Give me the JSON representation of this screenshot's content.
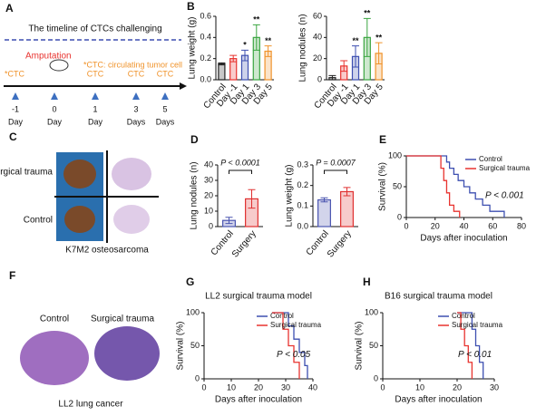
{
  "panels": {
    "letters": [
      "A",
      "B",
      "C",
      "D",
      "E",
      "F",
      "G",
      "H"
    ],
    "timeline": {
      "title": "The timeline of CTCs challenging",
      "amputation": "Amputation",
      "note": "*CTC: circulating tumor cell",
      "first": "*CTC",
      "ctc": [
        "CTC",
        "CTC",
        "CTC"
      ],
      "days": [
        "-1",
        "0",
        "1",
        "3",
        "5"
      ],
      "units": [
        "Day",
        "Day",
        "Day",
        "Days",
        "Days"
      ]
    },
    "c": {
      "rows": [
        "Surgical trauma",
        "Control"
      ],
      "caption": "K7M2 osteosarcoma"
    },
    "f": {
      "cols": [
        "Control",
        "Surgical trauma"
      ],
      "caption": "LL2 lung cancer"
    }
  },
  "chart_data": [
    {
      "type": "bar",
      "ylabel": "Lung weight (g)",
      "categories": [
        "Control",
        "Day -1",
        "Day 1",
        "Day 3",
        "Day 5"
      ],
      "values": [
        0.15,
        0.2,
        0.23,
        0.4,
        0.27
      ],
      "errors": [
        0.01,
        0.03,
        0.05,
        0.12,
        0.05
      ],
      "colors": [
        "#222222",
        "#e8332f",
        "#3d4fb0",
        "#3aa540",
        "#f0932b"
      ],
      "ylim": [
        0,
        0.6
      ],
      "yticks": [
        {
          "value": 0,
          "label": "0.0"
        },
        {
          "value": 0.2,
          "label": "0.2"
        },
        {
          "value": 0.4,
          "label": "0.4"
        },
        {
          "value": 0.6,
          "label": "0.6"
        }
      ],
      "annotations": [
        {
          "index": 2,
          "text": "*"
        },
        {
          "index": 3,
          "text": "**"
        },
        {
          "index": 4,
          "text": "**"
        }
      ]
    },
    {
      "type": "bar",
      "ylabel": "Lung nodules (n)",
      "categories": [
        "Control",
        "Day -1",
        "Day 1",
        "Day 3",
        "Day 5"
      ],
      "values": [
        2,
        13,
        22,
        40,
        25
      ],
      "errors": [
        2,
        5,
        10,
        18,
        10
      ],
      "colors": [
        "#222222",
        "#e8332f",
        "#3d4fb0",
        "#3aa540",
        "#f0932b"
      ],
      "ylim": [
        0,
        60
      ],
      "yticks": [
        0,
        20,
        40,
        60
      ],
      "annotations": [
        {
          "index": 2,
          "text": "**"
        },
        {
          "index": 3,
          "text": "**"
        },
        {
          "index": 4,
          "text": "**"
        }
      ]
    },
    {
      "type": "bar",
      "ylabel": "Lung nodules (n)",
      "categories": [
        "Control",
        "Surgery"
      ],
      "values": [
        4,
        18
      ],
      "errors": [
        2,
        6
      ],
      "colors": [
        "#4a55b0",
        "#e03030"
      ],
      "ylim": [
        0,
        40
      ],
      "yticks": [
        0,
        10,
        20,
        30,
        40
      ],
      "pvalue": "P < 0.0001"
    },
    {
      "type": "bar",
      "ylabel": "Lung weight (g)",
      "categories": [
        "Control",
        "Surgery"
      ],
      "values": [
        0.13,
        0.17
      ],
      "errors": [
        0.01,
        0.02
      ],
      "colors": [
        "#4a55b0",
        "#e03030"
      ],
      "ylim": [
        0,
        0.3
      ],
      "yticks": [
        {
          "value": 0,
          "label": "0.0"
        },
        {
          "value": 0.1,
          "label": "0.1"
        },
        {
          "value": 0.2,
          "label": "0.2"
        },
        {
          "value": 0.3,
          "label": "0.3"
        }
      ],
      "pvalue": "P = 0.0007"
    },
    {
      "type": "line",
      "xlabel": "Days after inoculation",
      "ylabel": "Survival (%)",
      "xlim": [
        0,
        80
      ],
      "xticks": [
        0,
        20,
        40,
        60,
        80
      ],
      "ylim": [
        0,
        100
      ],
      "yticks": [
        0,
        50,
        100
      ],
      "legend": "upper right",
      "pvalue": "P < 0.001",
      "series": [
        {
          "name": "Control",
          "color": "#3d4fb0",
          "x": [
            0,
            28,
            28,
            30,
            30,
            33,
            33,
            36,
            36,
            40,
            40,
            44,
            44,
            48,
            48,
            53,
            53,
            58,
            58,
            68,
            68
          ],
          "values": [
            100,
            100,
            90,
            90,
            80,
            80,
            70,
            70,
            60,
            60,
            50,
            50,
            40,
            40,
            30,
            30,
            20,
            20,
            10,
            10,
            0
          ]
        },
        {
          "name": "Surgical trauma",
          "color": "#e8332f",
          "x": [
            0,
            24,
            24,
            26,
            26,
            28,
            28,
            30,
            30,
            33,
            33,
            37,
            37
          ],
          "values": [
            100,
            100,
            80,
            80,
            60,
            60,
            40,
            40,
            20,
            20,
            10,
            10,
            0
          ]
        }
      ]
    },
    {
      "type": "line",
      "title": "LL2 surgical trauma model",
      "xlabel": "Days after inoculation",
      "ylabel": "Survival (%)",
      "xlim": [
        0,
        40
      ],
      "xticks": [
        0,
        10,
        20,
        30,
        40
      ],
      "ylim": [
        0,
        100
      ],
      "yticks": [
        0,
        50,
        100
      ],
      "legend": "upper right",
      "pvalue": "P < 0.05",
      "series": [
        {
          "name": "Control",
          "color": "#3d4fb0",
          "x": [
            25,
            31,
            31,
            33,
            33,
            35,
            35,
            37,
            37,
            38,
            38
          ],
          "values": [
            100,
            100,
            80,
            80,
            60,
            60,
            40,
            40,
            20,
            20,
            0
          ]
        },
        {
          "name": "Surgical trauma",
          "color": "#e8332f",
          "x": [
            25,
            29,
            29,
            31,
            31,
            33,
            33,
            35,
            35
          ],
          "values": [
            100,
            100,
            75,
            75,
            50,
            50,
            25,
            25,
            0
          ]
        }
      ]
    },
    {
      "type": "line",
      "title": "B16 surgical trauma model",
      "xlabel": "Days after inoculation",
      "ylabel": "Survival (%)",
      "xlim": [
        0,
        30
      ],
      "xticks": [
        0,
        10,
        20,
        30
      ],
      "ylim": [
        0,
        100
      ],
      "yticks": [
        0,
        50,
        100
      ],
      "legend": "upper right",
      "pvalue": "P < 0.01",
      "series": [
        {
          "name": "Control",
          "color": "#3d4fb0",
          "x": [
            20,
            24,
            24,
            25,
            25,
            26,
            26,
            27,
            27
          ],
          "values": [
            100,
            100,
            75,
            75,
            50,
            50,
            25,
            25,
            0
          ]
        },
        {
          "name": "Surgical trauma",
          "color": "#e8332f",
          "x": [
            20,
            21,
            21,
            22,
            22,
            23,
            23,
            24,
            24
          ],
          "values": [
            100,
            100,
            75,
            75,
            50,
            50,
            25,
            25,
            0
          ]
        }
      ]
    }
  ]
}
